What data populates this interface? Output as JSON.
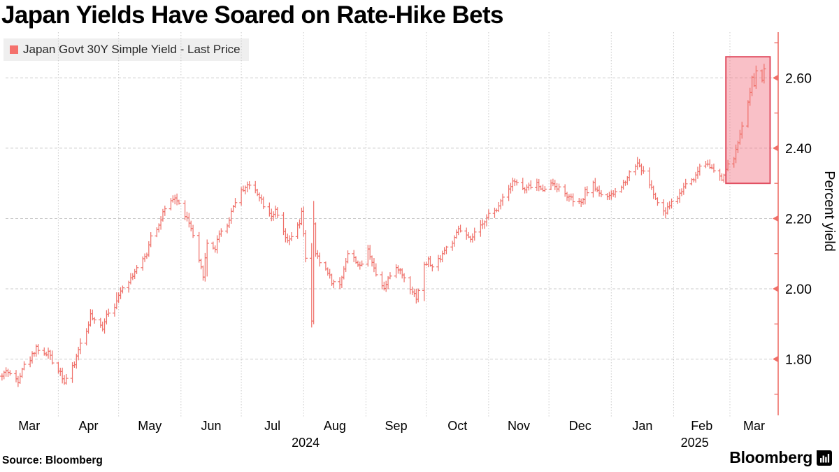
{
  "page": {
    "title": "Japan Yields Have Soared on Rate-Hike Bets"
  },
  "legend": {
    "label": "Japan Govt 30Y Simple Yield - Last Price"
  },
  "footer": {
    "source": "Source:  Bloomberg",
    "brand": "Bloomberg"
  },
  "chart_data": {
    "type": "ohlc-bar",
    "title": "Japan Yields Have Soared on Rate-Hike Bets",
    "series_name": "Japan Govt 30Y Simple Yield - Last Price",
    "ylabel": "Percent yield",
    "ylim": [
      1.64,
      2.73
    ],
    "grid": true,
    "legend_position": "top-left",
    "y_ticks_major": [
      1.8,
      2.0,
      2.2,
      2.4,
      2.6
    ],
    "y_ticks_minor": [
      1.7,
      1.9,
      2.1,
      2.3,
      2.5,
      2.7
    ],
    "y_tick_format": "0.00",
    "x_range": [
      "2024-03-03",
      "2025-03-25"
    ],
    "x_month_labels": [
      "Mar",
      "Apr",
      "May",
      "Jun",
      "Jul",
      "Aug",
      "Sep",
      "Oct",
      "Nov",
      "Dec",
      "Jan",
      "Feb",
      "Mar"
    ],
    "x_year_labels": [
      {
        "label": "2024",
        "span": [
          "2024-03-03",
          "2025-01-01"
        ]
      },
      {
        "label": "2025",
        "span": [
          "2025-01-01",
          "2025-03-25"
        ]
      }
    ],
    "highlight_box": {
      "from": "2025-02-27",
      "to": "2025-03-21",
      "top": 2.66,
      "bottom": 2.3
    },
    "anchors": [
      [
        "2024-03-04",
        1.75
      ],
      [
        "2024-03-06",
        1.77
      ],
      [
        "2024-03-08",
        1.755
      ],
      [
        "2024-03-12",
        1.74
      ],
      [
        "2024-03-14",
        1.775
      ],
      [
        "2024-03-18",
        1.8
      ],
      [
        "2024-03-21",
        1.835
      ],
      [
        "2024-03-25",
        1.81
      ],
      [
        "2024-03-27",
        1.82
      ],
      [
        "2024-03-29",
        1.79
      ],
      [
        "2024-04-02",
        1.765
      ],
      [
        "2024-04-04",
        1.735
      ],
      [
        "2024-04-09",
        1.785
      ],
      [
        "2024-04-11",
        1.83
      ],
      [
        "2024-04-15",
        1.88
      ],
      [
        "2024-04-17",
        1.925
      ],
      [
        "2024-04-19",
        1.905
      ],
      [
        "2024-04-23",
        1.89
      ],
      [
        "2024-04-25",
        1.93
      ],
      [
        "2024-04-30",
        1.96
      ],
      [
        "2024-05-02",
        2.0
      ],
      [
        "2024-05-07",
        2.03
      ],
      [
        "2024-05-09",
        2.05
      ],
      [
        "2024-05-13",
        2.08
      ],
      [
        "2024-05-15",
        2.1
      ],
      [
        "2024-05-17",
        2.155
      ],
      [
        "2024-05-21",
        2.18
      ],
      [
        "2024-05-23",
        2.215
      ],
      [
        "2024-05-27",
        2.245
      ],
      [
        "2024-05-29",
        2.26
      ],
      [
        "2024-05-31",
        2.24
      ],
      [
        "2024-06-04",
        2.2
      ],
      [
        "2024-06-06",
        2.17
      ],
      [
        "2024-06-10",
        2.075
      ],
      [
        "2024-06-12",
        2.04
      ],
      [
        "2024-06-14",
        2.13
      ],
      [
        "2024-06-18",
        2.115
      ],
      [
        "2024-06-20",
        2.16
      ],
      [
        "2024-06-24",
        2.18
      ],
      [
        "2024-06-26",
        2.22
      ],
      [
        "2024-06-28",
        2.25
      ],
      [
        "2024-07-02",
        2.285
      ],
      [
        "2024-07-04",
        2.295
      ],
      [
        "2024-07-08",
        2.28
      ],
      [
        "2024-07-10",
        2.265
      ],
      [
        "2024-07-12",
        2.24
      ],
      [
        "2024-07-16",
        2.21
      ],
      [
        "2024-07-18",
        2.22
      ],
      [
        "2024-07-22",
        2.16
      ],
      [
        "2024-07-24",
        2.13
      ],
      [
        "2024-07-26",
        2.15
      ],
      [
        "2024-07-30",
        2.185
      ],
      [
        "2024-07-31",
        2.215
      ],
      [
        "2024-08-01",
        2.16
      ],
      [
        "2024-08-02",
        2.09
      ],
      [
        "2024-08-05",
        1.905
      ],
      [
        "2024-08-06",
        2.18
      ],
      [
        "2024-08-07",
        2.1
      ],
      [
        "2024-08-09",
        2.075
      ],
      [
        "2024-08-13",
        2.05
      ],
      [
        "2024-08-15",
        2.02
      ],
      [
        "2024-08-19",
        2.01
      ],
      [
        "2024-08-21",
        2.06
      ],
      [
        "2024-08-23",
        2.1
      ],
      [
        "2024-08-27",
        2.08
      ],
      [
        "2024-08-29",
        2.06
      ],
      [
        "2024-09-02",
        2.11
      ],
      [
        "2024-09-04",
        2.08
      ],
      [
        "2024-09-06",
        2.04
      ],
      [
        "2024-09-10",
        2.005
      ],
      [
        "2024-09-12",
        2.03
      ],
      [
        "2024-09-17",
        2.06
      ],
      [
        "2024-09-19",
        2.04
      ],
      [
        "2024-09-24",
        1.995
      ],
      [
        "2024-09-26",
        1.975
      ],
      [
        "2024-09-30",
        2.065
      ],
      [
        "2024-10-02",
        2.08
      ],
      [
        "2024-10-04",
        2.06
      ],
      [
        "2024-10-08",
        2.09
      ],
      [
        "2024-10-10",
        2.11
      ],
      [
        "2024-10-15",
        2.14
      ],
      [
        "2024-10-17",
        2.17
      ],
      [
        "2024-10-21",
        2.15
      ],
      [
        "2024-10-23",
        2.135
      ],
      [
        "2024-10-25",
        2.16
      ],
      [
        "2024-10-29",
        2.18
      ],
      [
        "2024-10-31",
        2.21
      ],
      [
        "2024-11-05",
        2.22
      ],
      [
        "2024-11-07",
        2.255
      ],
      [
        "2024-11-11",
        2.285
      ],
      [
        "2024-11-13",
        2.31
      ],
      [
        "2024-11-15",
        2.3
      ],
      [
        "2024-11-19",
        2.28
      ],
      [
        "2024-11-21",
        2.29
      ],
      [
        "2024-11-25",
        2.3
      ],
      [
        "2024-11-27",
        2.28
      ],
      [
        "2024-11-29",
        2.29
      ],
      [
        "2024-12-03",
        2.3
      ],
      [
        "2024-12-05",
        2.29
      ],
      [
        "2024-12-09",
        2.27
      ],
      [
        "2024-12-11",
        2.26
      ],
      [
        "2024-12-13",
        2.25
      ],
      [
        "2024-12-17",
        2.24
      ],
      [
        "2024-12-19",
        2.275
      ],
      [
        "2024-12-23",
        2.295
      ],
      [
        "2024-12-25",
        2.28
      ],
      [
        "2024-12-27",
        2.27
      ],
      [
        "2024-12-31",
        2.26
      ],
      [
        "2025-01-06",
        2.29
      ],
      [
        "2025-01-08",
        2.31
      ],
      [
        "2025-01-10",
        2.33
      ],
      [
        "2025-01-14",
        2.36
      ],
      [
        "2025-01-16",
        2.34
      ],
      [
        "2025-01-20",
        2.3
      ],
      [
        "2025-01-22",
        2.27
      ],
      [
        "2025-01-24",
        2.24
      ],
      [
        "2025-01-28",
        2.215
      ],
      [
        "2025-01-30",
        2.24
      ],
      [
        "2025-02-03",
        2.26
      ],
      [
        "2025-02-05",
        2.28
      ],
      [
        "2025-02-07",
        2.3
      ],
      [
        "2025-02-12",
        2.32
      ],
      [
        "2025-02-14",
        2.35
      ],
      [
        "2025-02-18",
        2.36
      ],
      [
        "2025-02-20",
        2.34
      ],
      [
        "2025-02-25",
        2.31
      ],
      [
        "2025-02-27",
        2.34
      ],
      [
        "2025-03-03",
        2.375
      ],
      [
        "2025-03-05",
        2.41
      ],
      [
        "2025-03-06",
        2.44
      ],
      [
        "2025-03-07",
        2.47
      ],
      [
        "2025-03-10",
        2.525
      ],
      [
        "2025-03-11",
        2.565
      ],
      [
        "2025-03-12",
        2.6
      ],
      [
        "2025-03-13",
        2.575
      ],
      [
        "2025-03-14",
        2.615
      ],
      [
        "2025-03-17",
        2.595
      ],
      [
        "2025-03-18",
        2.62
      ]
    ],
    "special_bars": {
      "2024-04-30": {
        "high": 1.99
      },
      "2024-06-14": {
        "low": 2.035
      },
      "2024-07-04": {
        "high": 2.305
      },
      "2024-08-05": {
        "high": 2.13,
        "low": 1.89
      },
      "2024-08-06": {
        "high": 2.25
      },
      "2024-09-30": {
        "low": 1.965
      },
      "2025-01-14": {
        "high": 2.375
      },
      "2025-01-28": {
        "low": 2.2
      },
      "2025-03-14": {
        "high": 2.635
      },
      "2025-03-18": {
        "high": 2.64
      }
    },
    "colors": {
      "bar": "#ef6f68",
      "axis": "#ef6f68",
      "legend_swatch": "#f4716c",
      "box_fill": "rgba(241,106,121,0.42)",
      "box_border": "#e14f62",
      "grid": "#cbcbcb",
      "text": "#000000"
    }
  }
}
